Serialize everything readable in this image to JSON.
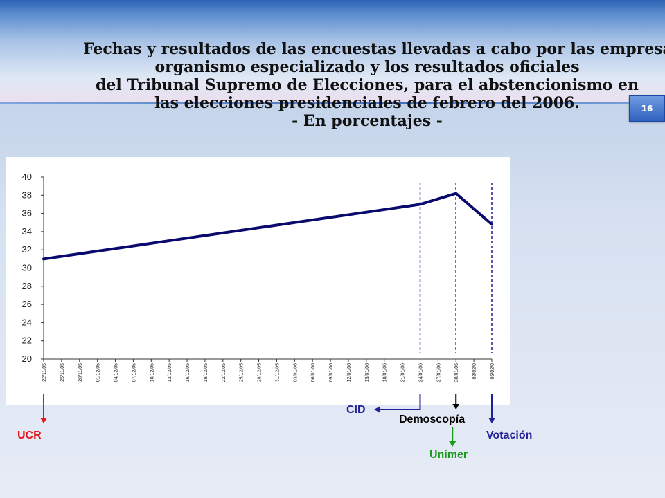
{
  "title_lines": [
    "Fechas y resultados de las encuestas llevadas a cabo por las empresas y",
    "organismo especializado y los resultados oficiales",
    "del Tribunal Supremo de Elecciones, para el abstencionismo en",
    "las elecciones presidenciales de febrero del 2006.",
    "- En porcentajes -"
  ],
  "page_number": "16",
  "chart_data": {
    "type": "line",
    "ylim": [
      20,
      40
    ],
    "y_ticks": [
      "20",
      "22",
      "24",
      "26",
      "28",
      "30",
      "32",
      "34",
      "36",
      "38",
      "40"
    ],
    "categories": [
      "22/11/05",
      "25/11/05",
      "28/11/05",
      "01/12/05",
      "04/12/05",
      "07/12/05",
      "10/12/05",
      "13/12/05",
      "16/12/05",
      "19/12/05",
      "22/12/05",
      "25/12/05",
      "28/12/05",
      "31/12/05",
      "03/01/06",
      "06/01/06",
      "09/01/06",
      "12/01/06",
      "15/01/06",
      "18/01/06",
      "21/01/06",
      "24/01/06",
      "27/01/06",
      "30/01/06",
      "02/02/0",
      "05/02/0"
    ],
    "series": [
      {
        "color": "#0a0a6e",
        "points": [
          {
            "x": "22/11/05",
            "y": 31
          },
          {
            "x": "24/01/06",
            "y": 37
          },
          {
            "x": "30/01/06",
            "y": 38.2
          },
          {
            "x": "05/02/0",
            "y": 34.8
          }
        ]
      }
    ],
    "markers": [
      {
        "label": "UCR",
        "x": "22/11/05",
        "color": "#e8151b",
        "dashed": false
      },
      {
        "label": "CID",
        "x": "24/01/06",
        "color": "#20209a",
        "dashed": true
      },
      {
        "label": "Demoscopía",
        "x": "30/01/06",
        "color": "#000000",
        "dashed": true
      },
      {
        "label": "Unimer",
        "x": "30/01/06",
        "color": "#1a9a1a",
        "dashed": true
      },
      {
        "label": "Votación",
        "x": "05/02/0",
        "color": "#20209a",
        "dashed": true
      }
    ]
  }
}
